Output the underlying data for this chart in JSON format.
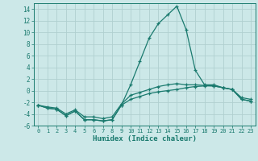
{
  "xlabel": "Humidex (Indice chaleur)",
  "x": [
    0,
    1,
    2,
    3,
    4,
    5,
    6,
    7,
    8,
    9,
    10,
    11,
    12,
    13,
    14,
    15,
    16,
    17,
    18,
    19,
    20,
    21,
    22,
    23
  ],
  "line_top": [
    -2.5,
    -3.0,
    -3.2,
    -4.3,
    -3.5,
    -5.0,
    -5.0,
    -5.2,
    -5.0,
    -2.5,
    1.0,
    5.0,
    9.0,
    11.5,
    13.0,
    14.5,
    10.5,
    3.5,
    1.0,
    1.0,
    0.5,
    0.2,
    -1.5,
    -1.8
  ],
  "line_mid": [
    -2.5,
    -2.8,
    -3.0,
    -4.0,
    -3.3,
    -4.5,
    -4.5,
    -4.8,
    -4.5,
    -2.3,
    -0.8,
    -0.3,
    0.2,
    0.7,
    1.0,
    1.2,
    1.0,
    1.0,
    0.9,
    0.8,
    0.5,
    0.2,
    -1.2,
    -1.5
  ],
  "line_bot": [
    -2.5,
    -3.0,
    -3.2,
    -4.3,
    -3.5,
    -5.0,
    -5.0,
    -5.2,
    -5.0,
    -2.5,
    -1.5,
    -1.0,
    -0.5,
    -0.2,
    0.0,
    0.2,
    0.5,
    0.7,
    0.8,
    0.8,
    0.5,
    0.2,
    -1.5,
    -1.8
  ],
  "line_color": "#1a7a6e",
  "bg_color": "#cce8e8",
  "grid_color": "#b0d0d0",
  "ylim": [
    -6,
    15
  ],
  "yticks": [
    -6,
    -4,
    -2,
    0,
    2,
    4,
    6,
    8,
    10,
    12,
    14
  ],
  "xticks": [
    0,
    1,
    2,
    3,
    4,
    5,
    6,
    7,
    8,
    9,
    10,
    11,
    12,
    13,
    14,
    15,
    16,
    17,
    18,
    19,
    20,
    21,
    22,
    23
  ]
}
